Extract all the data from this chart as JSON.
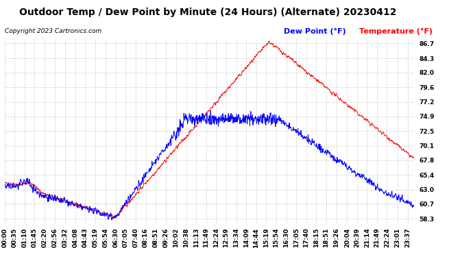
{
  "title": "Outdoor Temp / Dew Point by Minute (24 Hours) (Alternate) 20230412",
  "copyright": "Copyright 2023 Cartronics.com",
  "legend_dew": "Dew Point (°F)",
  "legend_temp": "Temperature (°F)",
  "yticks": [
    58.3,
    60.7,
    63.0,
    65.4,
    67.8,
    70.1,
    72.5,
    74.9,
    77.2,
    79.6,
    82.0,
    84.3,
    86.7
  ],
  "ylim": [
    57.5,
    87.5
  ],
  "bg_color": "#ffffff",
  "grid_color": "#cccccc",
  "temp_color": "#ff0000",
  "dew_color": "#0000ff",
  "title_fontsize": 10,
  "tick_fontsize": 6.5,
  "legend_fontsize": 8,
  "copyright_fontsize": 6.5
}
